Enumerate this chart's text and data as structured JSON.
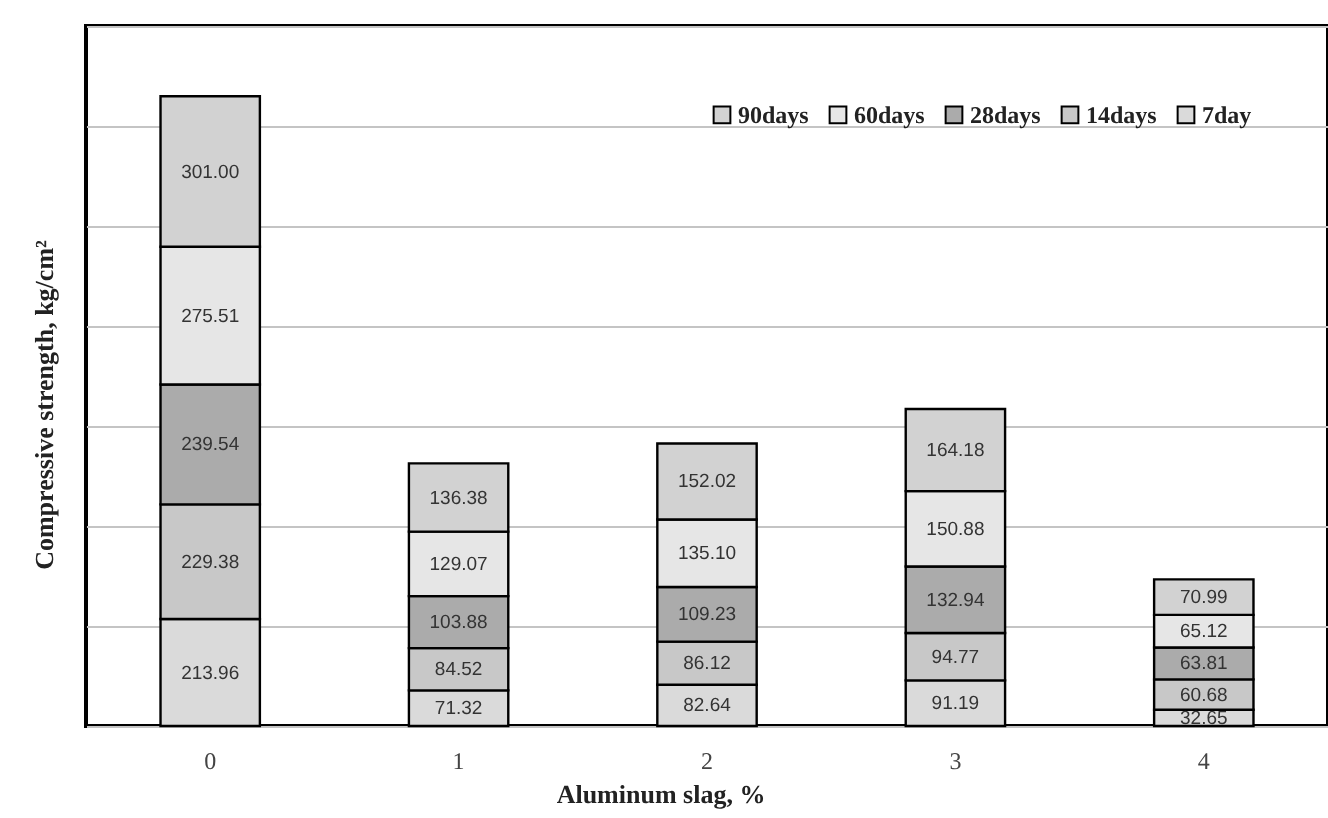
{
  "chart_data": {
    "type": "bar",
    "xlabel": "Aluminum slag, %",
    "ylabel": "Compressive strength, kg/cm²",
    "categories": [
      "0",
      "1",
      "2",
      "3",
      "4"
    ],
    "stacked": true,
    "series": [
      {
        "name": "7day",
        "color": "#dadada",
        "values": [
          213.96,
          71.32,
          82.64,
          91.19,
          32.65
        ],
        "value_labels": [
          "213.96",
          "71.32",
          "82.64",
          "91.19",
          "32.65"
        ]
      },
      {
        "name": "14days",
        "color": "#c8c8c8",
        "values": [
          229.38,
          84.52,
          86.12,
          94.77,
          60.68
        ],
        "value_labels": [
          "229.38",
          "84.52",
          "86.12",
          "94.77",
          "60.68"
        ]
      },
      {
        "name": "28days",
        "color": "#ababab",
        "values": [
          239.54,
          103.88,
          109.23,
          132.94,
          63.81
        ],
        "value_labels": [
          "239.54",
          "103.88",
          "109.23",
          "132.94",
          "63.81"
        ]
      },
      {
        "name": "60days",
        "color": "#e6e6e6",
        "values": [
          275.51,
          129.07,
          135.1,
          150.88,
          65.12
        ],
        "value_labels": [
          "275.51",
          "129.07",
          "135.10",
          "150.88",
          "65.12"
        ]
      },
      {
        "name": "90days",
        "color": "#d2d2d2",
        "values": [
          301.0,
          136.38,
          152.02,
          164.18,
          70.99
        ],
        "value_labels": [
          "301.00",
          "136.38",
          "152.02",
          "164.18",
          "70.99"
        ]
      }
    ],
    "ylim": [
      0,
      1400
    ],
    "yticks": [
      0,
      200,
      400,
      600,
      800,
      1000,
      1200,
      1400
    ],
    "grid": "y",
    "legend": "top right",
    "tick_labels": "x"
  }
}
